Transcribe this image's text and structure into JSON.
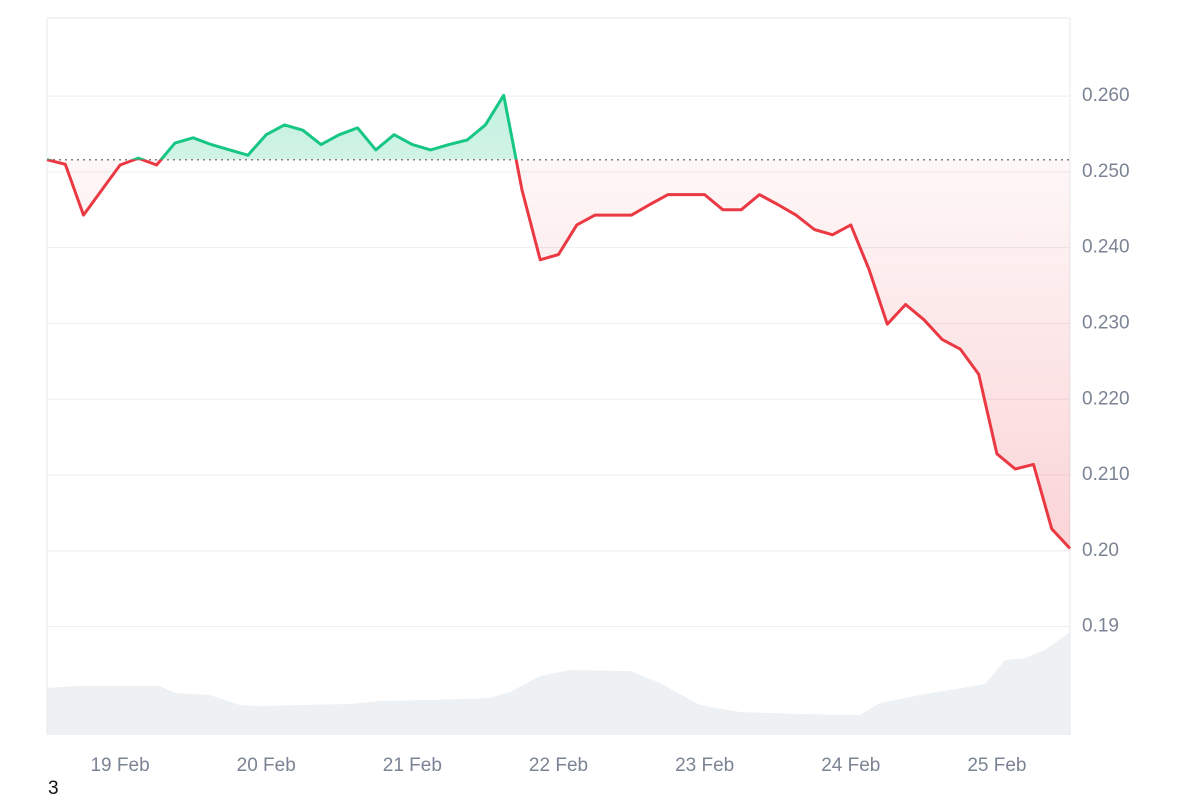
{
  "chart_data": {
    "type": "line",
    "note": "3",
    "categories": [
      null,
      null,
      null,
      null,
      "19 Feb",
      null,
      null,
      null,
      null,
      null,
      null,
      null,
      "20 Feb",
      null,
      null,
      null,
      null,
      null,
      null,
      null,
      "21 Feb",
      null,
      null,
      null,
      null,
      null,
      null,
      null,
      "22 Feb",
      null,
      null,
      null,
      null,
      null,
      null,
      null,
      "23 Feb",
      null,
      null,
      null,
      null,
      null,
      null,
      null,
      "24 Feb",
      null,
      null,
      null,
      null,
      null,
      null,
      null,
      "25 Feb",
      null,
      null,
      null,
      null
    ],
    "values": [
      0.2516,
      0.251,
      0.2443,
      0.2476,
      0.2509,
      0.2518,
      0.2509,
      0.2538,
      0.2545,
      0.2536,
      0.2529,
      0.2522,
      0.2549,
      0.2562,
      0.2555,
      0.2536,
      0.2549,
      0.2558,
      0.2529,
      0.2549,
      0.2536,
      0.2529,
      0.2536,
      0.2542,
      0.2562,
      0.2601,
      0.2476,
      0.2384,
      0.2391,
      0.243,
      0.2443,
      0.2443,
      0.2443,
      0.2457,
      0.247,
      0.247,
      0.247,
      0.245,
      0.245,
      0.247,
      0.2457,
      0.2443,
      0.2424,
      0.2417,
      0.243,
      0.2371,
      0.2299,
      0.2325,
      0.2305,
      0.2279,
      0.2266,
      0.2233,
      0.2128,
      0.2108,
      0.2114,
      0.2029,
      0.2003
    ],
    "baseline": 0.2516,
    "up_color": "#16c784",
    "down_color": "#ea3943",
    "ylim": [
      0.1757,
      0.2703
    ],
    "yticks": [
      {
        "value": 0.26,
        "label": "0.260"
      },
      {
        "value": 0.25,
        "label": "0.250"
      },
      {
        "value": 0.24,
        "label": "0.240"
      },
      {
        "value": 0.23,
        "label": "0.230"
      },
      {
        "value": 0.22,
        "label": "0.220"
      },
      {
        "value": 0.21,
        "label": "0.210"
      },
      {
        "value": 0.2,
        "label": "0.20"
      },
      0.19
    ],
    "grid": true
  }
}
